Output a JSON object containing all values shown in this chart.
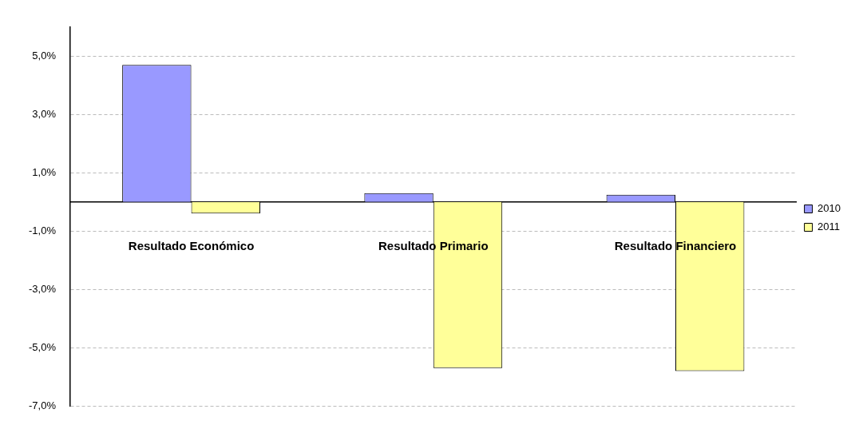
{
  "chart_data": {
    "type": "bar",
    "categories": [
      "Resultado Económico",
      "Resultado Primario",
      "Resultado Financiero"
    ],
    "series": [
      {
        "name": "2010",
        "color": "#9999ff",
        "values": [
          4.7,
          0.3,
          0.25
        ]
      },
      {
        "name": "2011",
        "color": "#ffff99",
        "values": [
          -0.4,
          -5.7,
          -5.8
        ]
      }
    ],
    "ylim": [
      -7,
      6
    ],
    "yticks": [
      {
        "value": -7,
        "label": "-7,0%"
      },
      {
        "value": -5,
        "label": "-5,0%"
      },
      {
        "value": -3,
        "label": "-3,0%"
      },
      {
        "value": -1,
        "label": "-1,0%"
      },
      {
        "value": 1,
        "label": "1,0%"
      },
      {
        "value": 3,
        "label": "3,0%"
      },
      {
        "value": 5,
        "label": "5,0%"
      }
    ],
    "grid": "y",
    "legend": "right"
  }
}
